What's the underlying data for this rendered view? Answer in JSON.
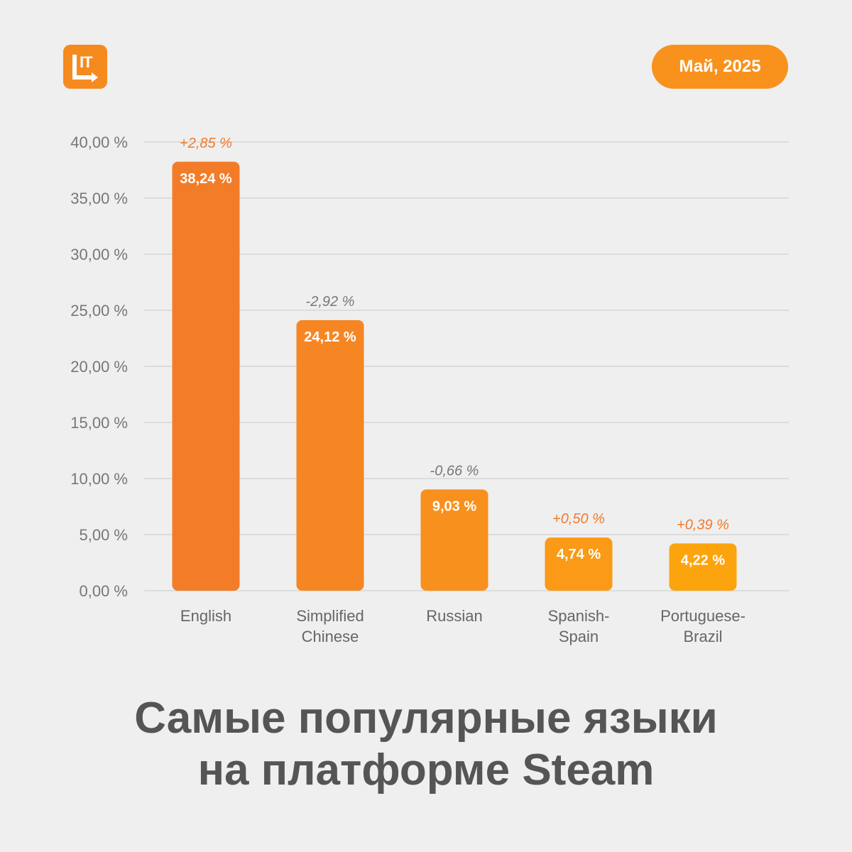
{
  "header": {
    "logo_text": "IT",
    "date_label": "Май, 2025"
  },
  "title": {
    "line1": "Самые популярные языки",
    "line2": "на платформе Steam"
  },
  "colors": {
    "background": "#efefef",
    "grid": "#dcdcdc",
    "axis_text": "#777777",
    "category_text": "#666666",
    "positive_delta": "#f07b2a",
    "negative_delta": "#777777",
    "value_text": "#ffffff"
  },
  "chart_data": {
    "type": "bar",
    "categories": [
      [
        "English"
      ],
      [
        "Simplified",
        "Chinese"
      ],
      [
        "Russian"
      ],
      [
        "Spanish-",
        "Spain"
      ],
      [
        "Portuguese-",
        "Brazil"
      ]
    ],
    "values": [
      38.24,
      24.12,
      9.03,
      4.74,
      4.22
    ],
    "value_labels": [
      "38,24 %",
      "24,12 %",
      "9,03 %",
      "4,74 %",
      "4,22 %"
    ],
    "changes": [
      "+2,85 %",
      "-2,92 %",
      "-0,66 %",
      "+0,50 %",
      "+0,39 %"
    ],
    "bar_colors": [
      "#f37c29",
      "#f68623",
      "#f8901d",
      "#fa9a16",
      "#fca40e"
    ],
    "ylim": [
      0,
      40
    ],
    "yticks": [
      0,
      5,
      10,
      15,
      20,
      25,
      30,
      35,
      40
    ],
    "ytick_labels": [
      "0,00 %",
      "5,00 %",
      "10,00 %",
      "15,00 %",
      "20,00 %",
      "25,00 %",
      "30,00 %",
      "35,00 %",
      "40,00 %"
    ],
    "grid": true,
    "legend": "none"
  }
}
